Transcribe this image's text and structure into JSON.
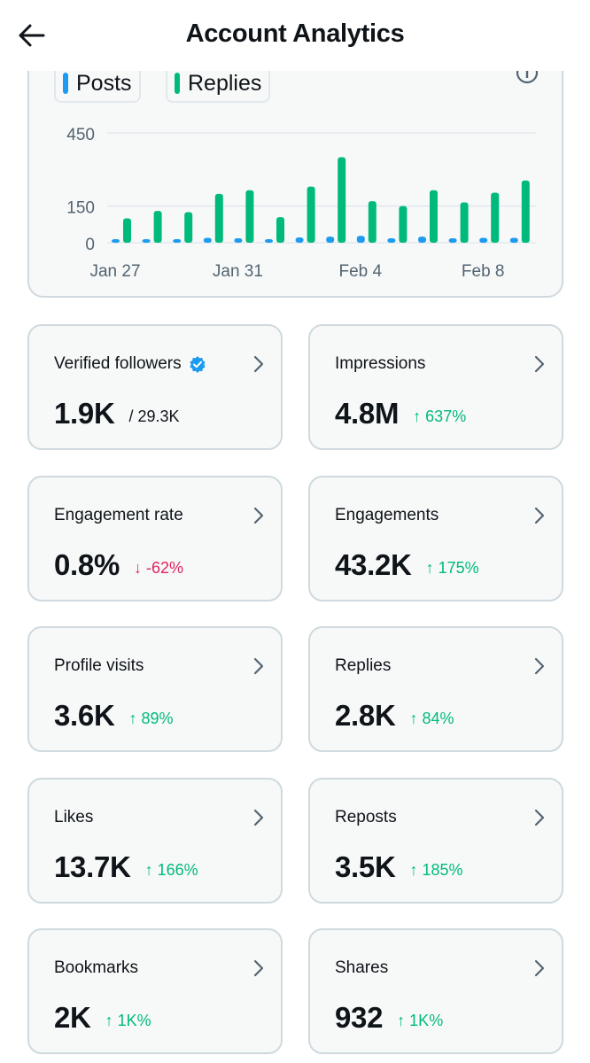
{
  "header": {
    "title": "Account Analytics"
  },
  "legend": {
    "posts_label": "Posts",
    "replies_label": "Replies",
    "posts_color": "#1d9bf0",
    "replies_color": "#00ba7c"
  },
  "chart_data": {
    "type": "bar",
    "x": [
      "Jan 27",
      "Jan 28",
      "Jan 29",
      "Jan 30",
      "Jan 31",
      "Feb 1",
      "Feb 2",
      "Feb 3",
      "Feb 4",
      "Feb 5",
      "Feb 6",
      "Feb 7",
      "Feb 8",
      "Feb 9"
    ],
    "x_tick_labels": [
      "Jan 27",
      "Jan 31",
      "Feb 4",
      "Feb 8"
    ],
    "y_tick_labels": [
      "0",
      "150",
      "450"
    ],
    "series": [
      {
        "name": "Posts",
        "color": "#1d9bf0",
        "values": [
          10,
          10,
          10,
          20,
          18,
          12,
          22,
          25,
          28,
          18,
          25,
          18,
          20,
          20
        ]
      },
      {
        "name": "Replies",
        "color": "#00ba7c",
        "values": [
          100,
          130,
          125,
          200,
          215,
          105,
          230,
          350,
          170,
          150,
          215,
          165,
          205,
          255
        ]
      }
    ],
    "ylim": [
      0,
      450
    ],
    "grid": true
  },
  "metrics": [
    {
      "label": "Verified followers",
      "value": "1.9K",
      "sub": "/ 29.3K",
      "verified": true
    },
    {
      "label": "Impressions",
      "value": "4.8M",
      "delta": "↑ 637%",
      "trend": "up"
    },
    {
      "label": "Engagement rate",
      "value": "0.8%",
      "delta": "↓ -62%",
      "trend": "down"
    },
    {
      "label": "Engagements",
      "value": "43.2K",
      "delta": "↑ 175%",
      "trend": "up"
    },
    {
      "label": "Profile visits",
      "value": "3.6K",
      "delta": "↑ 89%",
      "trend": "up"
    },
    {
      "label": "Replies",
      "value": "2.8K",
      "delta": "↑ 84%",
      "trend": "up"
    },
    {
      "label": "Likes",
      "value": "13.7K",
      "delta": "↑ 166%",
      "trend": "up"
    },
    {
      "label": "Reposts",
      "value": "3.5K",
      "delta": "↑ 185%",
      "trend": "up"
    },
    {
      "label": "Bookmarks",
      "value": "2K",
      "delta": "↑ 1K%",
      "trend": "up"
    },
    {
      "label": "Shares",
      "value": "932",
      "delta": "↑ 1K%",
      "trend": "up"
    }
  ]
}
